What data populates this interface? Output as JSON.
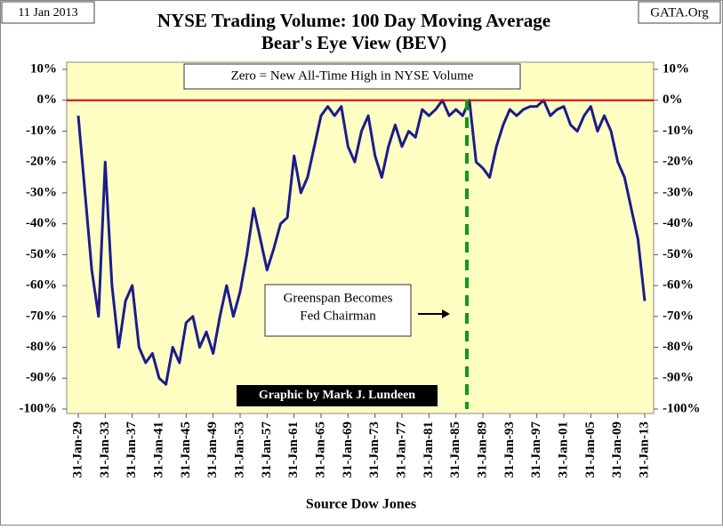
{
  "chart_data": {
    "type": "line",
    "date_label": "11 Jan 2013",
    "source_site": "GATA.Org",
    "title": [
      "NYSE Trading Volume: 100 Day Moving Average",
      "Bear's Eye View (BEV)"
    ],
    "top_note": "Zero = New All-Time High in NYSE Volume",
    "annotation": [
      "Greenspan Becomes",
      "Fed Chairman"
    ],
    "credit": "Graphic by Mark J. Lundeen",
    "x_label": "Source Dow Jones",
    "categories": [
      "31-Jan-29",
      null,
      null,
      null,
      "31-Jan-33",
      null,
      null,
      null,
      "31-Jan-37",
      null,
      null,
      null,
      "31-Jan-41",
      null,
      null,
      null,
      "31-Jan-45",
      null,
      null,
      null,
      "31-Jan-49",
      null,
      null,
      null,
      "31-Jan-53",
      null,
      null,
      null,
      "31-Jan-57",
      null,
      null,
      null,
      "31-Jan-61",
      null,
      null,
      null,
      "31-Jan-65",
      null,
      null,
      null,
      "31-Jan-69",
      null,
      null,
      null,
      "31-Jan-73",
      null,
      null,
      null,
      "31-Jan-77",
      null,
      null,
      null,
      "31-Jan-81",
      null,
      null,
      null,
      "31-Jan-85",
      null,
      null,
      null,
      "31-Jan-89",
      null,
      null,
      null,
      "31-Jan-93",
      null,
      null,
      null,
      "31-Jan-97",
      null,
      null,
      null,
      "31-Jan-01",
      null,
      null,
      null,
      "31-Jan-05",
      null,
      null,
      null,
      "31-Jan-09",
      null,
      null,
      null,
      "31-Jan-13"
    ],
    "series": [
      {
        "name": "BEV",
        "color": "#1c1c8a",
        "values": [
          -5,
          -30,
          -55,
          -70,
          -20,
          -60,
          -80,
          -65,
          -60,
          -80,
          -85,
          -82,
          -90,
          -92,
          -80,
          -85,
          -72,
          -70,
          -80,
          -75,
          -82,
          -70,
          -60,
          -70,
          -62,
          -50,
          -35,
          -45,
          -55,
          -48,
          -40,
          -38,
          -18,
          -30,
          -25,
          -15,
          -5,
          -2,
          -5,
          -2,
          -15,
          -20,
          -10,
          -5,
          -18,
          -25,
          -15,
          -8,
          -15,
          -10,
          -12,
          -3,
          -5,
          -3,
          0,
          -5,
          -3,
          -5,
          0,
          -20,
          -22,
          -25,
          -15,
          -8,
          -3,
          -5,
          -3,
          -2,
          -2,
          0,
          -5,
          -3,
          -2,
          -8,
          -10,
          -5,
          -2,
          -10,
          -5,
          -10,
          -20,
          -25,
          -35,
          -45,
          -65
        ]
      }
    ],
    "ylim": [
      -100,
      10
    ],
    "yticks": [
      {
        "value": -100,
        "label": "-100%"
      },
      {
        "value": -90,
        "label": "-90%"
      },
      {
        "value": -80,
        "label": "-80%"
      },
      {
        "value": -70,
        "label": "-70%"
      },
      {
        "value": -60,
        "label": "-60%"
      },
      {
        "value": -50,
        "label": "-50%"
      },
      {
        "value": -40,
        "label": "-40%"
      },
      {
        "value": -30,
        "label": "-30%"
      },
      {
        "value": -20,
        "label": "-20%"
      },
      {
        "value": -10,
        "label": "-10%"
      },
      {
        "value": 0,
        "label": "0%"
      },
      {
        "value": 10,
        "label": "10%"
      }
    ],
    "zero_line_color": "#e00000",
    "plot_background": "#ffffc4"
  }
}
